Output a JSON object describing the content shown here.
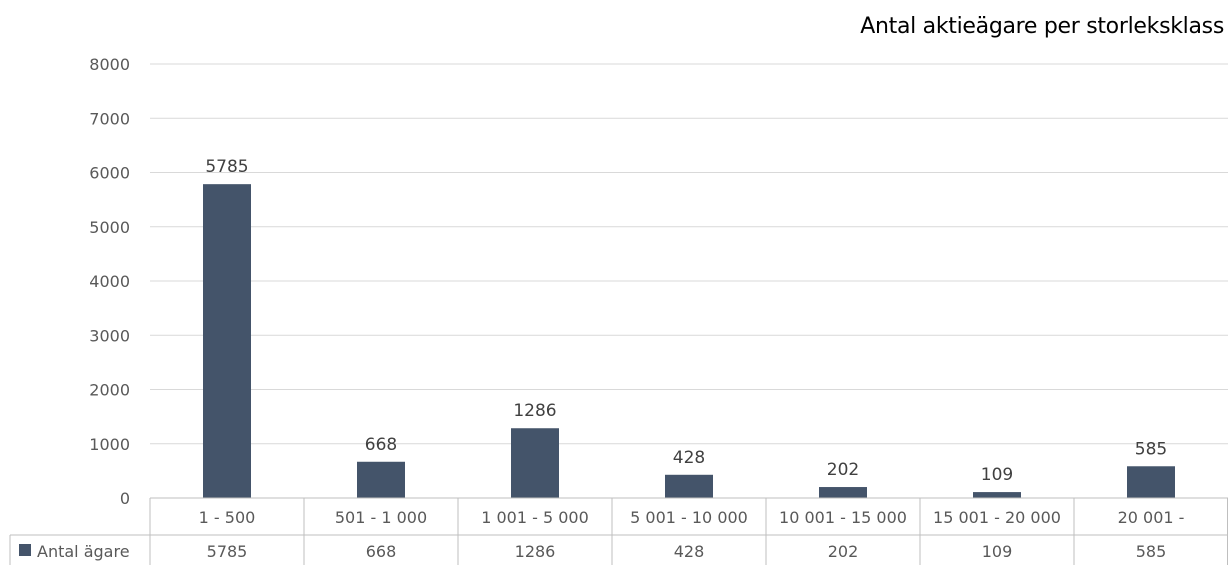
{
  "chart_data": {
    "type": "bar",
    "title": "Antal aktieägare per storleksklass",
    "categories": [
      "1 - 500",
      "501 - 1 000",
      "1 001 - 5 000",
      "5 001 - 10 000",
      "10 001 - 15 000",
      "15 001 - 20 000",
      "20 001 -"
    ],
    "series": [
      {
        "name": "Antal ägare",
        "values": [
          5785,
          668,
          1286,
          428,
          202,
          109,
          585
        ]
      }
    ],
    "yticks": [
      0,
      1000,
      2000,
      3000,
      4000,
      5000,
      6000,
      7000,
      8000
    ],
    "ylim": [
      0,
      8000
    ],
    "grid": true,
    "legend": "data-table",
    "bar_color": "#44546A",
    "grid_color": "#D9D9D9"
  }
}
